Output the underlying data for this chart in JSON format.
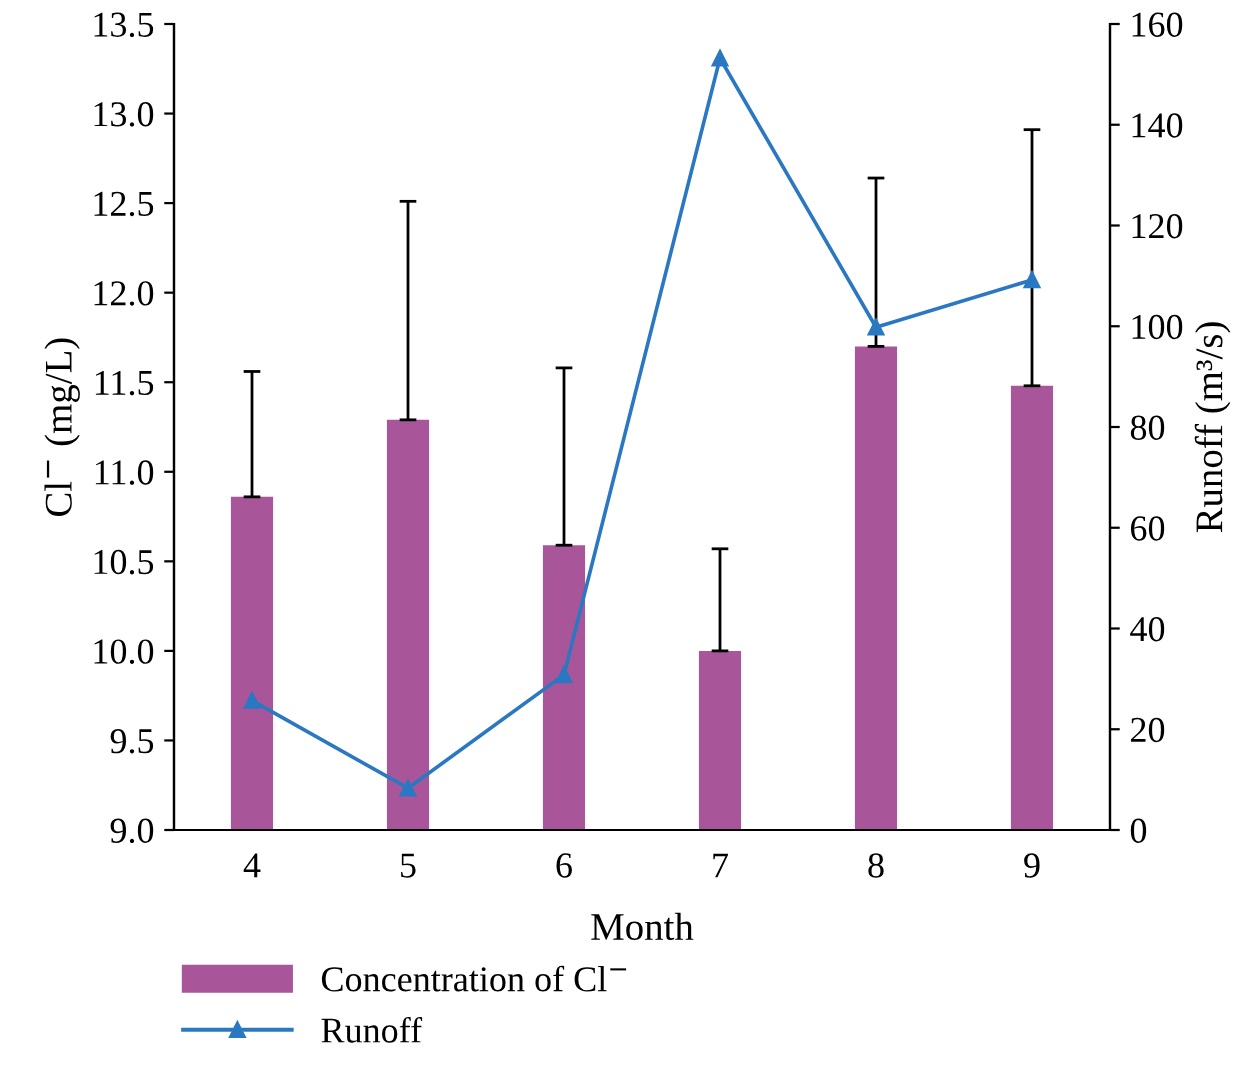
{
  "chart_data": {
    "type": "bar",
    "xlabel": "Month",
    "ylabel": "Cl$^{−}$ (mg/L)",
    "y2label": "Runoff (m³/s)",
    "categories": [
      "4",
      "5",
      "6",
      "7",
      "8",
      "9"
    ],
    "series": [
      {
        "name": "Concentration of Cl$^{−}$",
        "color": "#a85699",
        "values": [
          10.86,
          11.29,
          10.59,
          10.0,
          11.7,
          11.48
        ],
        "errors": [
          [
            10.86,
            11.56
          ],
          [
            11.29,
            12.51
          ],
          [
            10.59,
            11.58
          ],
          [
            10.0,
            10.57
          ],
          [
            11.7,
            12.64
          ],
          [
            11.48,
            12.91
          ]
        ]
      },
      {
        "name": "Runoff",
        "type": "line",
        "axis": "y2",
        "color": "#2a78c2",
        "marker": "triangle",
        "values": [
          25.7,
          8.3,
          30.8,
          153.2,
          99.8,
          109.2
        ]
      }
    ],
    "ylim": [
      9.0,
      13.5
    ],
    "yticks": [
      {
        "value": 9.0,
        "label": "9.0"
      },
      {
        "value": 9.5,
        "label": "9.5"
      },
      {
        "value": 10.0,
        "label": "10.0"
      },
      {
        "value": 10.5,
        "label": "10.5"
      },
      {
        "value": 11.0,
        "label": "11.0"
      },
      {
        "value": 11.5,
        "label": "11.5"
      },
      {
        "value": 12.0,
        "label": "12.0"
      },
      {
        "value": 12.5,
        "label": "12.5"
      },
      {
        "value": 13.0,
        "label": "13.0"
      },
      {
        "value": 13.5,
        "label": "13.5"
      }
    ],
    "y2lim": [
      0,
      160
    ],
    "y2ticks": [
      0,
      20,
      40,
      60,
      80,
      100,
      120,
      140,
      160
    ],
    "grid": false,
    "legend": "bottom left"
  }
}
